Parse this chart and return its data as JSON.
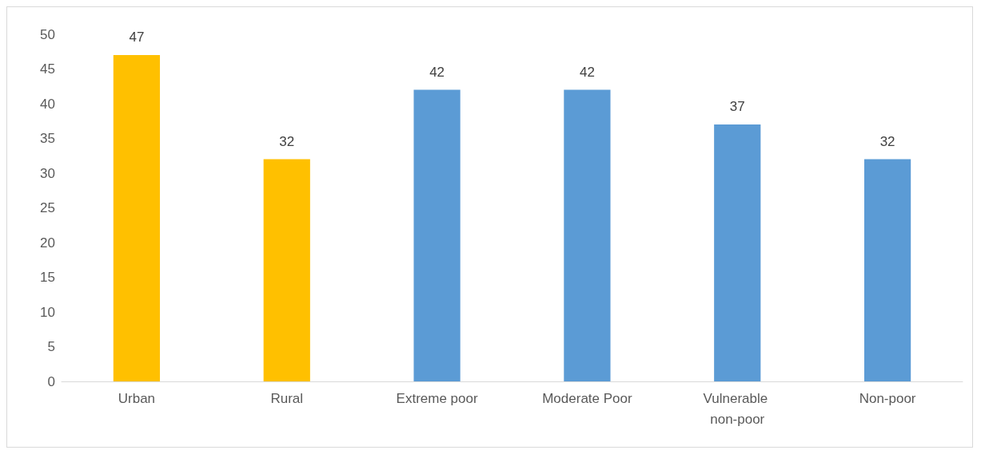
{
  "chart_data": {
    "type": "bar",
    "categories": [
      "Urban",
      "Rural",
      "Extreme poor",
      "Moderate Poor",
      "Vulnerable non-poor",
      "Non-poor"
    ],
    "values": [
      47,
      32,
      42,
      42,
      37,
      32
    ],
    "colors": [
      "#ffc000",
      "#ffc000",
      "#5b9bd5",
      "#5b9bd5",
      "#5b9bd5",
      "#5b9bd5"
    ],
    "ylim": [
      0,
      50
    ],
    "yticks": [
      0,
      5,
      10,
      15,
      20,
      25,
      30,
      35,
      40,
      45,
      50
    ],
    "grid": false,
    "data_labels": true
  }
}
